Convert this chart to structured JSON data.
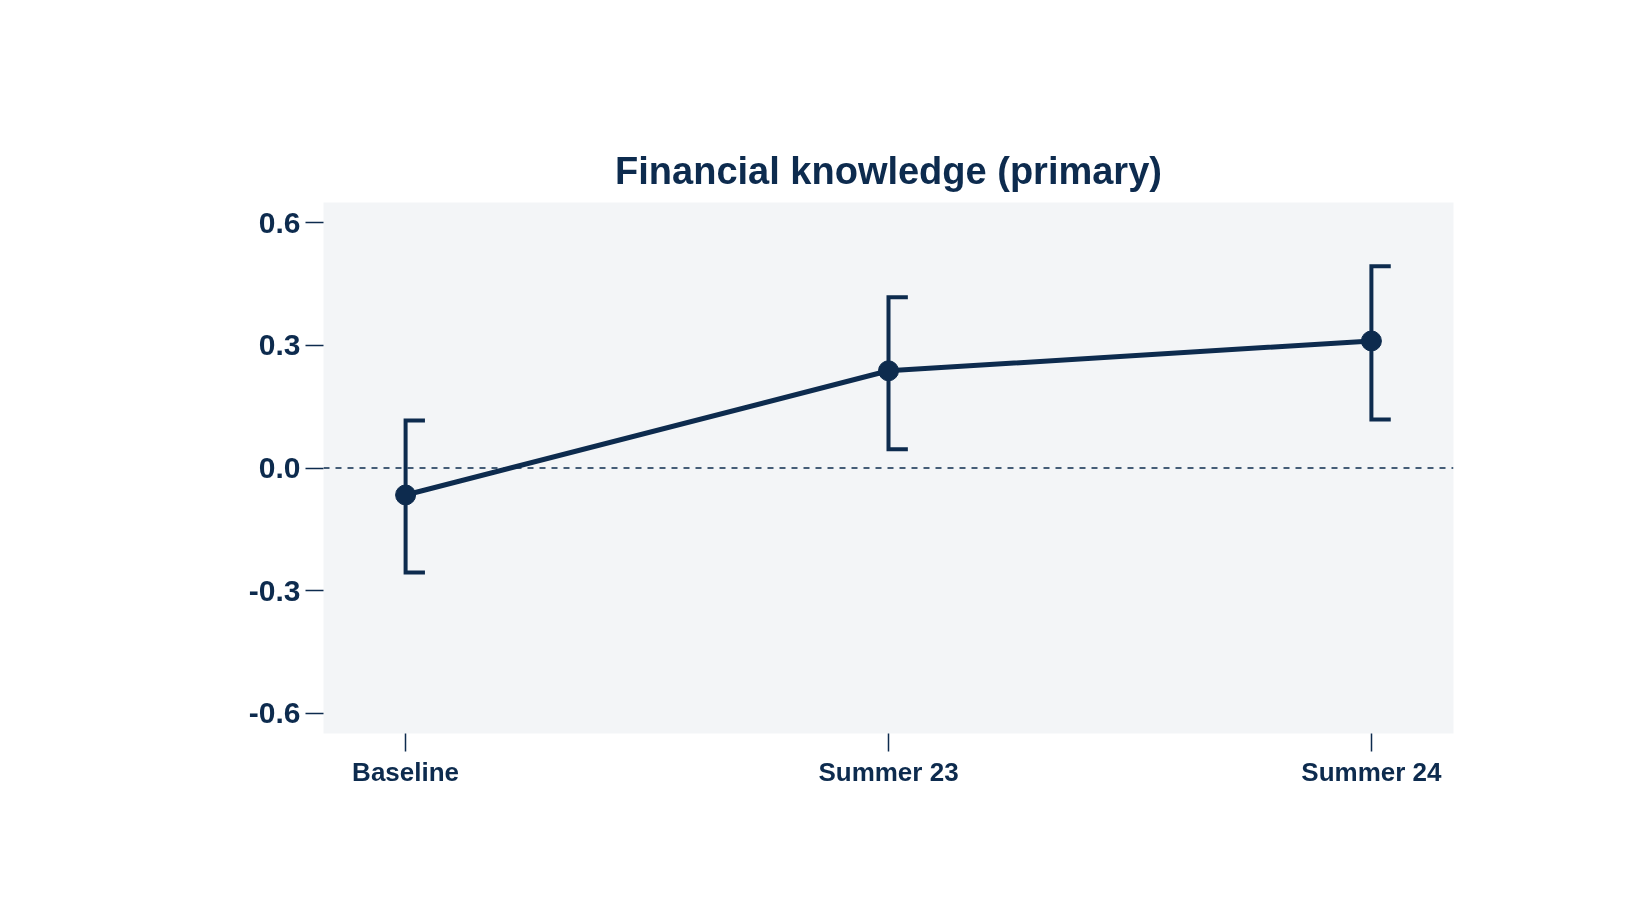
{
  "chart_data": {
    "type": "line",
    "title": "Financial knowledge (primary)",
    "categories": [
      "Baseline",
      "Summer 23",
      "Summer 24"
    ],
    "series": [
      {
        "color": "#0d2b4e",
        "values": [
          -0.066,
          0.238,
          0.311
        ],
        "errors": [
          [
            -0.256,
            0.116
          ],
          [
            0.046,
            0.418
          ],
          [
            0.119,
            0.494
          ]
        ]
      }
    ],
    "ylim": [
      -0.65,
      0.65
    ],
    "yticks": [
      {
        "value": 0.6,
        "label": "0.6"
      },
      {
        "value": 0.3,
        "label": "0.3"
      },
      {
        "value": 0,
        "label": "0.0"
      },
      {
        "value": -0.3,
        "label": "-0.3"
      },
      {
        "value": -0.6,
        "label": "-0.6"
      }
    ],
    "ref_lines": [
      {
        "axis": "y",
        "value": 0,
        "color": "#0d2b4e",
        "line_style": "dashed"
      }
    ],
    "grid": false,
    "marker": "circle",
    "line_style": "solid"
  }
}
